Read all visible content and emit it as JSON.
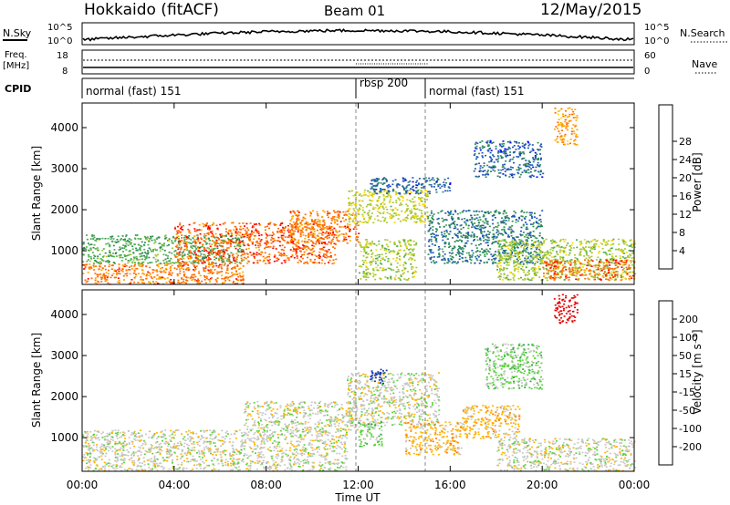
{
  "header": {
    "station": "Hokkaido (fitACF)",
    "beam": "Beam 01",
    "date": "12/May/2015"
  },
  "top_strips": {
    "nsky_label": "N.Sky",
    "nsearch_label": "N.Search",
    "nsky_ticks": [
      "10^5",
      "10^0"
    ],
    "nsearch_ticks": [
      "10^5",
      "10^0"
    ],
    "freq_label_line1": "Freq.",
    "freq_label_line2": "[MHz]",
    "freq_ticks": [
      "18",
      "8"
    ],
    "nave_label": "Nave",
    "nave_ticks": [
      "60",
      "0"
    ],
    "cpid_label": "CPID",
    "cpid_segments": [
      {
        "label": "normal (fast) 151",
        "start": 0,
        "end": 12
      },
      {
        "label": "rbsp 200",
        "start": 12,
        "end": 15
      },
      {
        "label": "normal (fast) 151",
        "start": 15,
        "end": 24
      }
    ]
  },
  "panels": {
    "power_ylabel": "Slant Range [km]",
    "velocity_ylabel": "Slant Range [km]",
    "y_ticks": [
      "1000",
      "2000",
      "3000",
      "4000"
    ],
    "x_ticks": [
      "00:00",
      "04:00",
      "08:00",
      "12:00",
      "16:00",
      "20:00",
      "00:00"
    ],
    "xlabel": "Time UT"
  },
  "colorbars": {
    "power": {
      "label": "Power [dB]",
      "ticks": [
        "4",
        "8",
        "12",
        "16",
        "20",
        "24",
        "28"
      ],
      "colors": [
        "#0000ff",
        "#1e56b4",
        "#2f8a5a",
        "#4caf50",
        "#a8c832",
        "#ffd700",
        "#ffa500",
        "#ff6a00",
        "#ff0000"
      ]
    },
    "velocity": {
      "label": "Velocity [m s⁻¹]",
      "ticks": [
        "200",
        "100",
        "50",
        "15",
        "-15",
        "-50",
        "-100",
        "-200"
      ],
      "colors": [
        "#1e3cb4",
        "#1e6a6e",
        "#28a046",
        "#5ad23c",
        "#c8c8c8",
        "#ffb400",
        "#ff7800",
        "#ff3c00",
        "#e60000"
      ]
    }
  },
  "chart_data": [
    {
      "type": "heatmap",
      "title": "Power [dB]",
      "xlabel": "Time UT",
      "ylabel": "Slant Range [km]",
      "xlim": [
        0,
        24
      ],
      "ylim": [
        180,
        4600
      ],
      "clim": [
        0,
        32
      ],
      "regions": [
        {
          "t0": 0.0,
          "t1": 7.0,
          "r0": 200,
          "r1": 700,
          "value": 26
        },
        {
          "t0": 0.0,
          "t1": 7.0,
          "r0": 700,
          "r1": 1400,
          "value": 12
        },
        {
          "t0": 4.0,
          "t1": 11.0,
          "r0": 700,
          "r1": 1700,
          "value": 27
        },
        {
          "t0": 9.0,
          "t1": 12.0,
          "r0": 1200,
          "r1": 2000,
          "value": 26
        },
        {
          "t0": 11.5,
          "t1": 15.0,
          "r0": 1700,
          "r1": 2500,
          "value": 17
        },
        {
          "t0": 12.5,
          "t1": 16.0,
          "r0": 2400,
          "r1": 2800,
          "value": 6
        },
        {
          "t0": 12.0,
          "t1": 14.5,
          "r0": 300,
          "r1": 1300,
          "value": 16
        },
        {
          "t0": 15.0,
          "t1": 20.0,
          "r0": 700,
          "r1": 2000,
          "value": 8
        },
        {
          "t0": 18.0,
          "t1": 24.0,
          "r0": 300,
          "r1": 1300,
          "value": 16
        },
        {
          "t0": 20.0,
          "t1": 24.0,
          "r0": 300,
          "r1": 800,
          "value": 27
        },
        {
          "t0": 17.0,
          "t1": 20.0,
          "r0": 2800,
          "r1": 3700,
          "value": 6
        },
        {
          "t0": 20.5,
          "t1": 21.5,
          "r0": 3600,
          "r1": 4500,
          "value": 24
        }
      ]
    },
    {
      "type": "heatmap",
      "title": "Velocity [m s⁻¹]",
      "xlabel": "Time UT",
      "ylabel": "Slant Range [km]",
      "xlim": [
        0,
        24
      ],
      "ylim": [
        180,
        4600
      ],
      "clim": [
        -200,
        200
      ],
      "regions": [
        {
          "t0": 0.0,
          "t1": 11.5,
          "r0": 200,
          "r1": 1200,
          "value": 0
        },
        {
          "t0": 7.0,
          "t1": 12.0,
          "r0": 1200,
          "r1": 1900,
          "value": 0
        },
        {
          "t0": 11.5,
          "t1": 15.5,
          "r0": 1300,
          "r1": 2600,
          "value": 0
        },
        {
          "t0": 12.5,
          "t1": 13.2,
          "r0": 2300,
          "r1": 2700,
          "value": 180
        },
        {
          "t0": 12.0,
          "t1": 13.0,
          "r0": 800,
          "r1": 1400,
          "value": 40
        },
        {
          "t0": 14.0,
          "t1": 16.5,
          "r0": 600,
          "r1": 1400,
          "value": -40
        },
        {
          "t0": 16.5,
          "t1": 19.0,
          "r0": 1000,
          "r1": 1800,
          "value": -40
        },
        {
          "t0": 18.0,
          "t1": 24.0,
          "r0": 200,
          "r1": 1000,
          "value": 0
        },
        {
          "t0": 17.5,
          "t1": 20.0,
          "r0": 2200,
          "r1": 3300,
          "value": 40
        },
        {
          "t0": 20.5,
          "t1": 21.5,
          "r0": 3800,
          "r1": 4500,
          "value": -200
        }
      ]
    }
  ]
}
